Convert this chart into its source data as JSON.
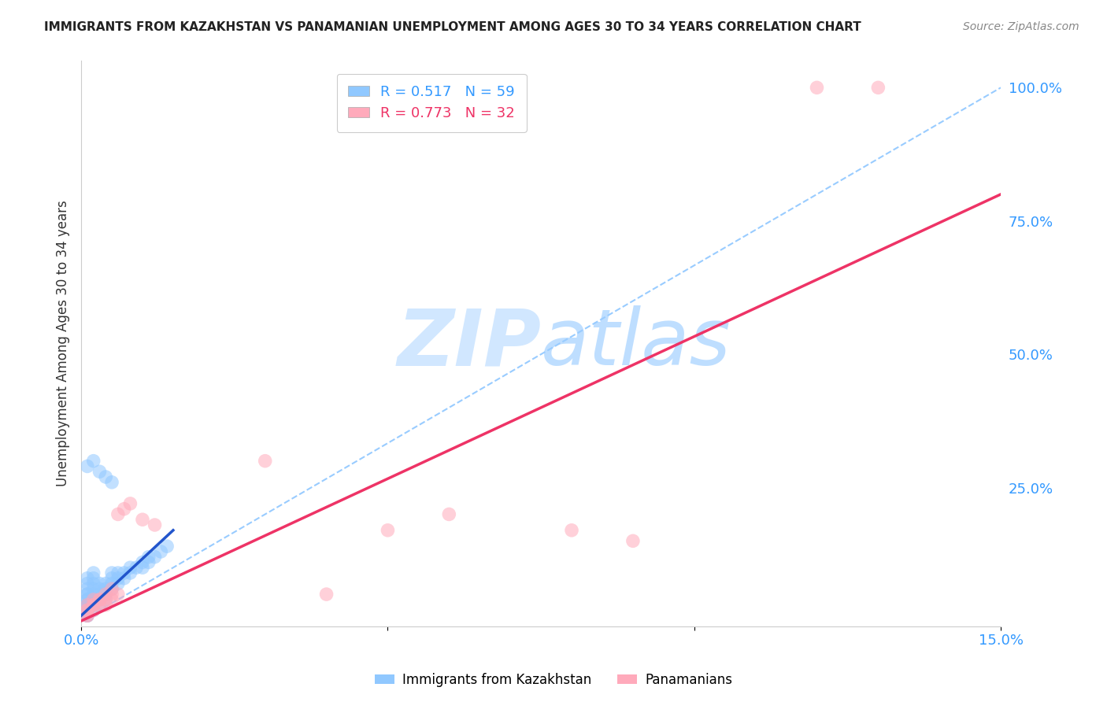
{
  "title": "IMMIGRANTS FROM KAZAKHSTAN VS PANAMANIAN UNEMPLOYMENT AMONG AGES 30 TO 34 YEARS CORRELATION CHART",
  "source": "Source: ZipAtlas.com",
  "ylabel": "Unemployment Among Ages 30 to 34 years",
  "xlim": [
    0.0,
    0.15
  ],
  "ylim": [
    -0.01,
    1.05
  ],
  "bg_color": "#ffffff",
  "grid_color": "#dddddd",
  "blue_color": "#90c8ff",
  "pink_color": "#ffaabb",
  "blue_line_color": "#2255cc",
  "pink_line_color": "#ee3366",
  "diag_line_color": "#99ccff",
  "watermark_color": "#cce5ff",
  "blue_scatter_x": [
    0.001,
    0.001,
    0.001,
    0.001,
    0.001,
    0.001,
    0.001,
    0.001,
    0.001,
    0.001,
    0.001,
    0.001,
    0.001,
    0.001,
    0.001,
    0.001,
    0.001,
    0.002,
    0.002,
    0.002,
    0.002,
    0.002,
    0.002,
    0.002,
    0.002,
    0.002,
    0.003,
    0.003,
    0.003,
    0.003,
    0.003,
    0.004,
    0.004,
    0.004,
    0.004,
    0.005,
    0.005,
    0.005,
    0.005,
    0.006,
    0.006,
    0.006,
    0.007,
    0.007,
    0.008,
    0.008,
    0.009,
    0.01,
    0.01,
    0.011,
    0.011,
    0.012,
    0.013,
    0.014,
    0.001,
    0.002,
    0.003,
    0.004,
    0.005
  ],
  "blue_scatter_y": [
    0.01,
    0.01,
    0.01,
    0.02,
    0.02,
    0.02,
    0.02,
    0.03,
    0.03,
    0.03,
    0.04,
    0.04,
    0.05,
    0.05,
    0.06,
    0.07,
    0.08,
    0.02,
    0.03,
    0.03,
    0.04,
    0.05,
    0.06,
    0.07,
    0.08,
    0.09,
    0.03,
    0.04,
    0.05,
    0.06,
    0.07,
    0.04,
    0.05,
    0.06,
    0.07,
    0.06,
    0.07,
    0.08,
    0.09,
    0.07,
    0.08,
    0.09,
    0.08,
    0.09,
    0.09,
    0.1,
    0.1,
    0.1,
    0.11,
    0.11,
    0.12,
    0.12,
    0.13,
    0.14,
    0.29,
    0.3,
    0.28,
    0.27,
    0.26
  ],
  "pink_scatter_x": [
    0.001,
    0.001,
    0.001,
    0.001,
    0.001,
    0.002,
    0.002,
    0.002,
    0.002,
    0.003,
    0.003,
    0.003,
    0.004,
    0.004,
    0.004,
    0.005,
    0.005,
    0.005,
    0.006,
    0.006,
    0.007,
    0.008,
    0.01,
    0.012,
    0.03,
    0.04,
    0.05,
    0.06,
    0.08,
    0.09,
    0.12,
    0.13
  ],
  "pink_scatter_y": [
    0.01,
    0.01,
    0.02,
    0.02,
    0.03,
    0.02,
    0.03,
    0.03,
    0.04,
    0.03,
    0.04,
    0.04,
    0.03,
    0.04,
    0.05,
    0.04,
    0.05,
    0.06,
    0.05,
    0.2,
    0.21,
    0.22,
    0.19,
    0.18,
    0.3,
    0.05,
    0.17,
    0.2,
    0.17,
    0.15,
    1.0,
    1.0
  ],
  "blue_line_x": [
    0.0,
    0.015
  ],
  "blue_line_y": [
    0.01,
    0.17
  ],
  "pink_line_x": [
    0.0,
    0.15
  ],
  "pink_line_y": [
    0.0,
    0.8
  ],
  "diag_line_x": [
    0.0,
    0.15
  ],
  "diag_line_y": [
    0.0,
    1.0
  ]
}
